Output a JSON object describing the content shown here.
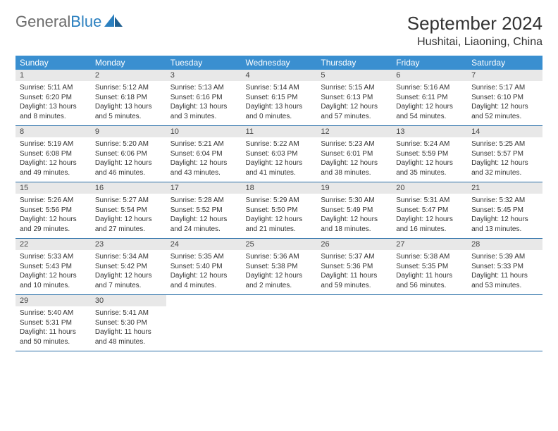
{
  "brand": {
    "part1": "General",
    "part2": "Blue"
  },
  "title": "September 2024",
  "location": "Hushitai, Liaoning, China",
  "colors": {
    "header_bg": "#3a8fd0",
    "header_text": "#ffffff",
    "daynum_bg": "#e8e8e8",
    "rule": "#2a6fa8",
    "brand_blue": "#2a7fbf",
    "brand_gray": "#6b6b6b"
  },
  "day_headers": [
    "Sunday",
    "Monday",
    "Tuesday",
    "Wednesday",
    "Thursday",
    "Friday",
    "Saturday"
  ],
  "weeks": [
    [
      {
        "n": "1",
        "sr": "Sunrise: 5:11 AM",
        "ss": "Sunset: 6:20 PM",
        "d1": "Daylight: 13 hours",
        "d2": "and 8 minutes."
      },
      {
        "n": "2",
        "sr": "Sunrise: 5:12 AM",
        "ss": "Sunset: 6:18 PM",
        "d1": "Daylight: 13 hours",
        "d2": "and 5 minutes."
      },
      {
        "n": "3",
        "sr": "Sunrise: 5:13 AM",
        "ss": "Sunset: 6:16 PM",
        "d1": "Daylight: 13 hours",
        "d2": "and 3 minutes."
      },
      {
        "n": "4",
        "sr": "Sunrise: 5:14 AM",
        "ss": "Sunset: 6:15 PM",
        "d1": "Daylight: 13 hours",
        "d2": "and 0 minutes."
      },
      {
        "n": "5",
        "sr": "Sunrise: 5:15 AM",
        "ss": "Sunset: 6:13 PM",
        "d1": "Daylight: 12 hours",
        "d2": "and 57 minutes."
      },
      {
        "n": "6",
        "sr": "Sunrise: 5:16 AM",
        "ss": "Sunset: 6:11 PM",
        "d1": "Daylight: 12 hours",
        "d2": "and 54 minutes."
      },
      {
        "n": "7",
        "sr": "Sunrise: 5:17 AM",
        "ss": "Sunset: 6:10 PM",
        "d1": "Daylight: 12 hours",
        "d2": "and 52 minutes."
      }
    ],
    [
      {
        "n": "8",
        "sr": "Sunrise: 5:19 AM",
        "ss": "Sunset: 6:08 PM",
        "d1": "Daylight: 12 hours",
        "d2": "and 49 minutes."
      },
      {
        "n": "9",
        "sr": "Sunrise: 5:20 AM",
        "ss": "Sunset: 6:06 PM",
        "d1": "Daylight: 12 hours",
        "d2": "and 46 minutes."
      },
      {
        "n": "10",
        "sr": "Sunrise: 5:21 AM",
        "ss": "Sunset: 6:04 PM",
        "d1": "Daylight: 12 hours",
        "d2": "and 43 minutes."
      },
      {
        "n": "11",
        "sr": "Sunrise: 5:22 AM",
        "ss": "Sunset: 6:03 PM",
        "d1": "Daylight: 12 hours",
        "d2": "and 41 minutes."
      },
      {
        "n": "12",
        "sr": "Sunrise: 5:23 AM",
        "ss": "Sunset: 6:01 PM",
        "d1": "Daylight: 12 hours",
        "d2": "and 38 minutes."
      },
      {
        "n": "13",
        "sr": "Sunrise: 5:24 AM",
        "ss": "Sunset: 5:59 PM",
        "d1": "Daylight: 12 hours",
        "d2": "and 35 minutes."
      },
      {
        "n": "14",
        "sr": "Sunrise: 5:25 AM",
        "ss": "Sunset: 5:57 PM",
        "d1": "Daylight: 12 hours",
        "d2": "and 32 minutes."
      }
    ],
    [
      {
        "n": "15",
        "sr": "Sunrise: 5:26 AM",
        "ss": "Sunset: 5:56 PM",
        "d1": "Daylight: 12 hours",
        "d2": "and 29 minutes."
      },
      {
        "n": "16",
        "sr": "Sunrise: 5:27 AM",
        "ss": "Sunset: 5:54 PM",
        "d1": "Daylight: 12 hours",
        "d2": "and 27 minutes."
      },
      {
        "n": "17",
        "sr": "Sunrise: 5:28 AM",
        "ss": "Sunset: 5:52 PM",
        "d1": "Daylight: 12 hours",
        "d2": "and 24 minutes."
      },
      {
        "n": "18",
        "sr": "Sunrise: 5:29 AM",
        "ss": "Sunset: 5:50 PM",
        "d1": "Daylight: 12 hours",
        "d2": "and 21 minutes."
      },
      {
        "n": "19",
        "sr": "Sunrise: 5:30 AM",
        "ss": "Sunset: 5:49 PM",
        "d1": "Daylight: 12 hours",
        "d2": "and 18 minutes."
      },
      {
        "n": "20",
        "sr": "Sunrise: 5:31 AM",
        "ss": "Sunset: 5:47 PM",
        "d1": "Daylight: 12 hours",
        "d2": "and 16 minutes."
      },
      {
        "n": "21",
        "sr": "Sunrise: 5:32 AM",
        "ss": "Sunset: 5:45 PM",
        "d1": "Daylight: 12 hours",
        "d2": "and 13 minutes."
      }
    ],
    [
      {
        "n": "22",
        "sr": "Sunrise: 5:33 AM",
        "ss": "Sunset: 5:43 PM",
        "d1": "Daylight: 12 hours",
        "d2": "and 10 minutes."
      },
      {
        "n": "23",
        "sr": "Sunrise: 5:34 AM",
        "ss": "Sunset: 5:42 PM",
        "d1": "Daylight: 12 hours",
        "d2": "and 7 minutes."
      },
      {
        "n": "24",
        "sr": "Sunrise: 5:35 AM",
        "ss": "Sunset: 5:40 PM",
        "d1": "Daylight: 12 hours",
        "d2": "and 4 minutes."
      },
      {
        "n": "25",
        "sr": "Sunrise: 5:36 AM",
        "ss": "Sunset: 5:38 PM",
        "d1": "Daylight: 12 hours",
        "d2": "and 2 minutes."
      },
      {
        "n": "26",
        "sr": "Sunrise: 5:37 AM",
        "ss": "Sunset: 5:36 PM",
        "d1": "Daylight: 11 hours",
        "d2": "and 59 minutes."
      },
      {
        "n": "27",
        "sr": "Sunrise: 5:38 AM",
        "ss": "Sunset: 5:35 PM",
        "d1": "Daylight: 11 hours",
        "d2": "and 56 minutes."
      },
      {
        "n": "28",
        "sr": "Sunrise: 5:39 AM",
        "ss": "Sunset: 5:33 PM",
        "d1": "Daylight: 11 hours",
        "d2": "and 53 minutes."
      }
    ],
    [
      {
        "n": "29",
        "sr": "Sunrise: 5:40 AM",
        "ss": "Sunset: 5:31 PM",
        "d1": "Daylight: 11 hours",
        "d2": "and 50 minutes."
      },
      {
        "n": "30",
        "sr": "Sunrise: 5:41 AM",
        "ss": "Sunset: 5:30 PM",
        "d1": "Daylight: 11 hours",
        "d2": "and 48 minutes."
      },
      null,
      null,
      null,
      null,
      null
    ]
  ]
}
